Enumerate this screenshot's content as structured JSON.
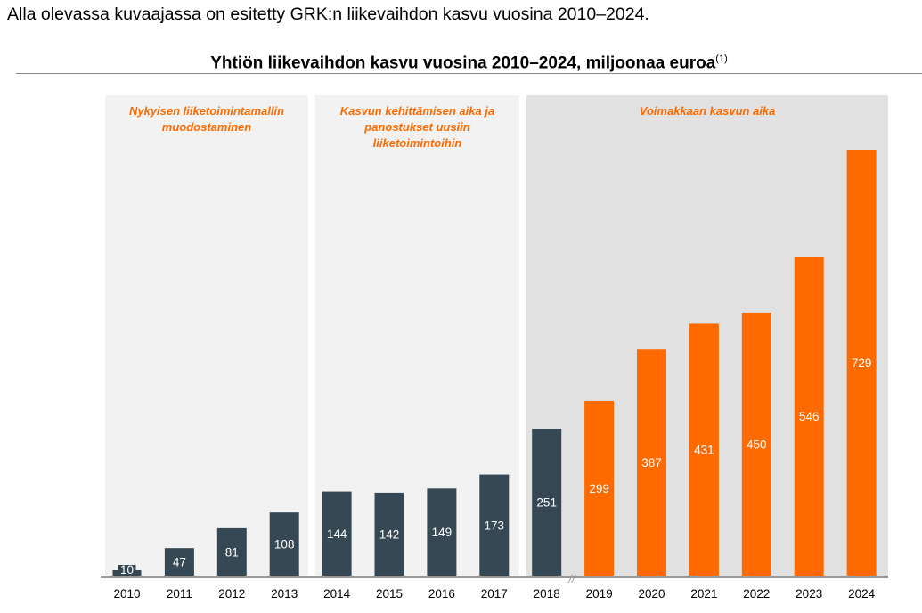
{
  "intro_text": "Alla olevassa kuvaajassa on esitetty GRK:n liikevaihdon kasvu vuosina 2010–2024.",
  "chart_data": {
    "type": "bar",
    "title": "Yhtiön liikevaihdon kasvu vuosina 2010–2024, miljoonaa euroa",
    "title_footnote": "(1)",
    "xlabel": "",
    "ylabel": "",
    "ylim": [
      0,
      760
    ],
    "grid": false,
    "categories": [
      "2010",
      "2011",
      "2012",
      "2013",
      "2014",
      "2015",
      "2016",
      "2017",
      "2018",
      "2019",
      "2020",
      "2021",
      "2022",
      "2023",
      "2024"
    ],
    "values": [
      10,
      47,
      81,
      108,
      144,
      142,
      149,
      173,
      251,
      299,
      387,
      431,
      450,
      546,
      729
    ],
    "axis_break_marker": "//",
    "colors": {
      "dark": "#364854",
      "orange": "#ff6a00",
      "panel_light": "#f2f2f2",
      "panel_dark": "#e1e1e1",
      "axis": "#999999"
    },
    "bar_colors": [
      "dark",
      "dark",
      "dark",
      "dark",
      "dark",
      "dark",
      "dark",
      "dark",
      "dark",
      "orange",
      "orange",
      "orange",
      "orange",
      "orange",
      "orange"
    ],
    "phases": [
      {
        "label_lines": [
          "Nykyisen liiketoimintamallin",
          "muodostaminen"
        ],
        "first": 0,
        "last": 3,
        "shade": "panel_light"
      },
      {
        "label_lines": [
          "Kasvun kehittämisen aika ja",
          "panostukset uusiin",
          "liiketoimintoihin"
        ],
        "first": 4,
        "last": 7,
        "shade": "panel_light"
      },
      {
        "label_lines": [
          "Voimakkaan kasvun aika"
        ],
        "first": 8,
        "last": 14,
        "shade": "panel_dark"
      }
    ]
  }
}
